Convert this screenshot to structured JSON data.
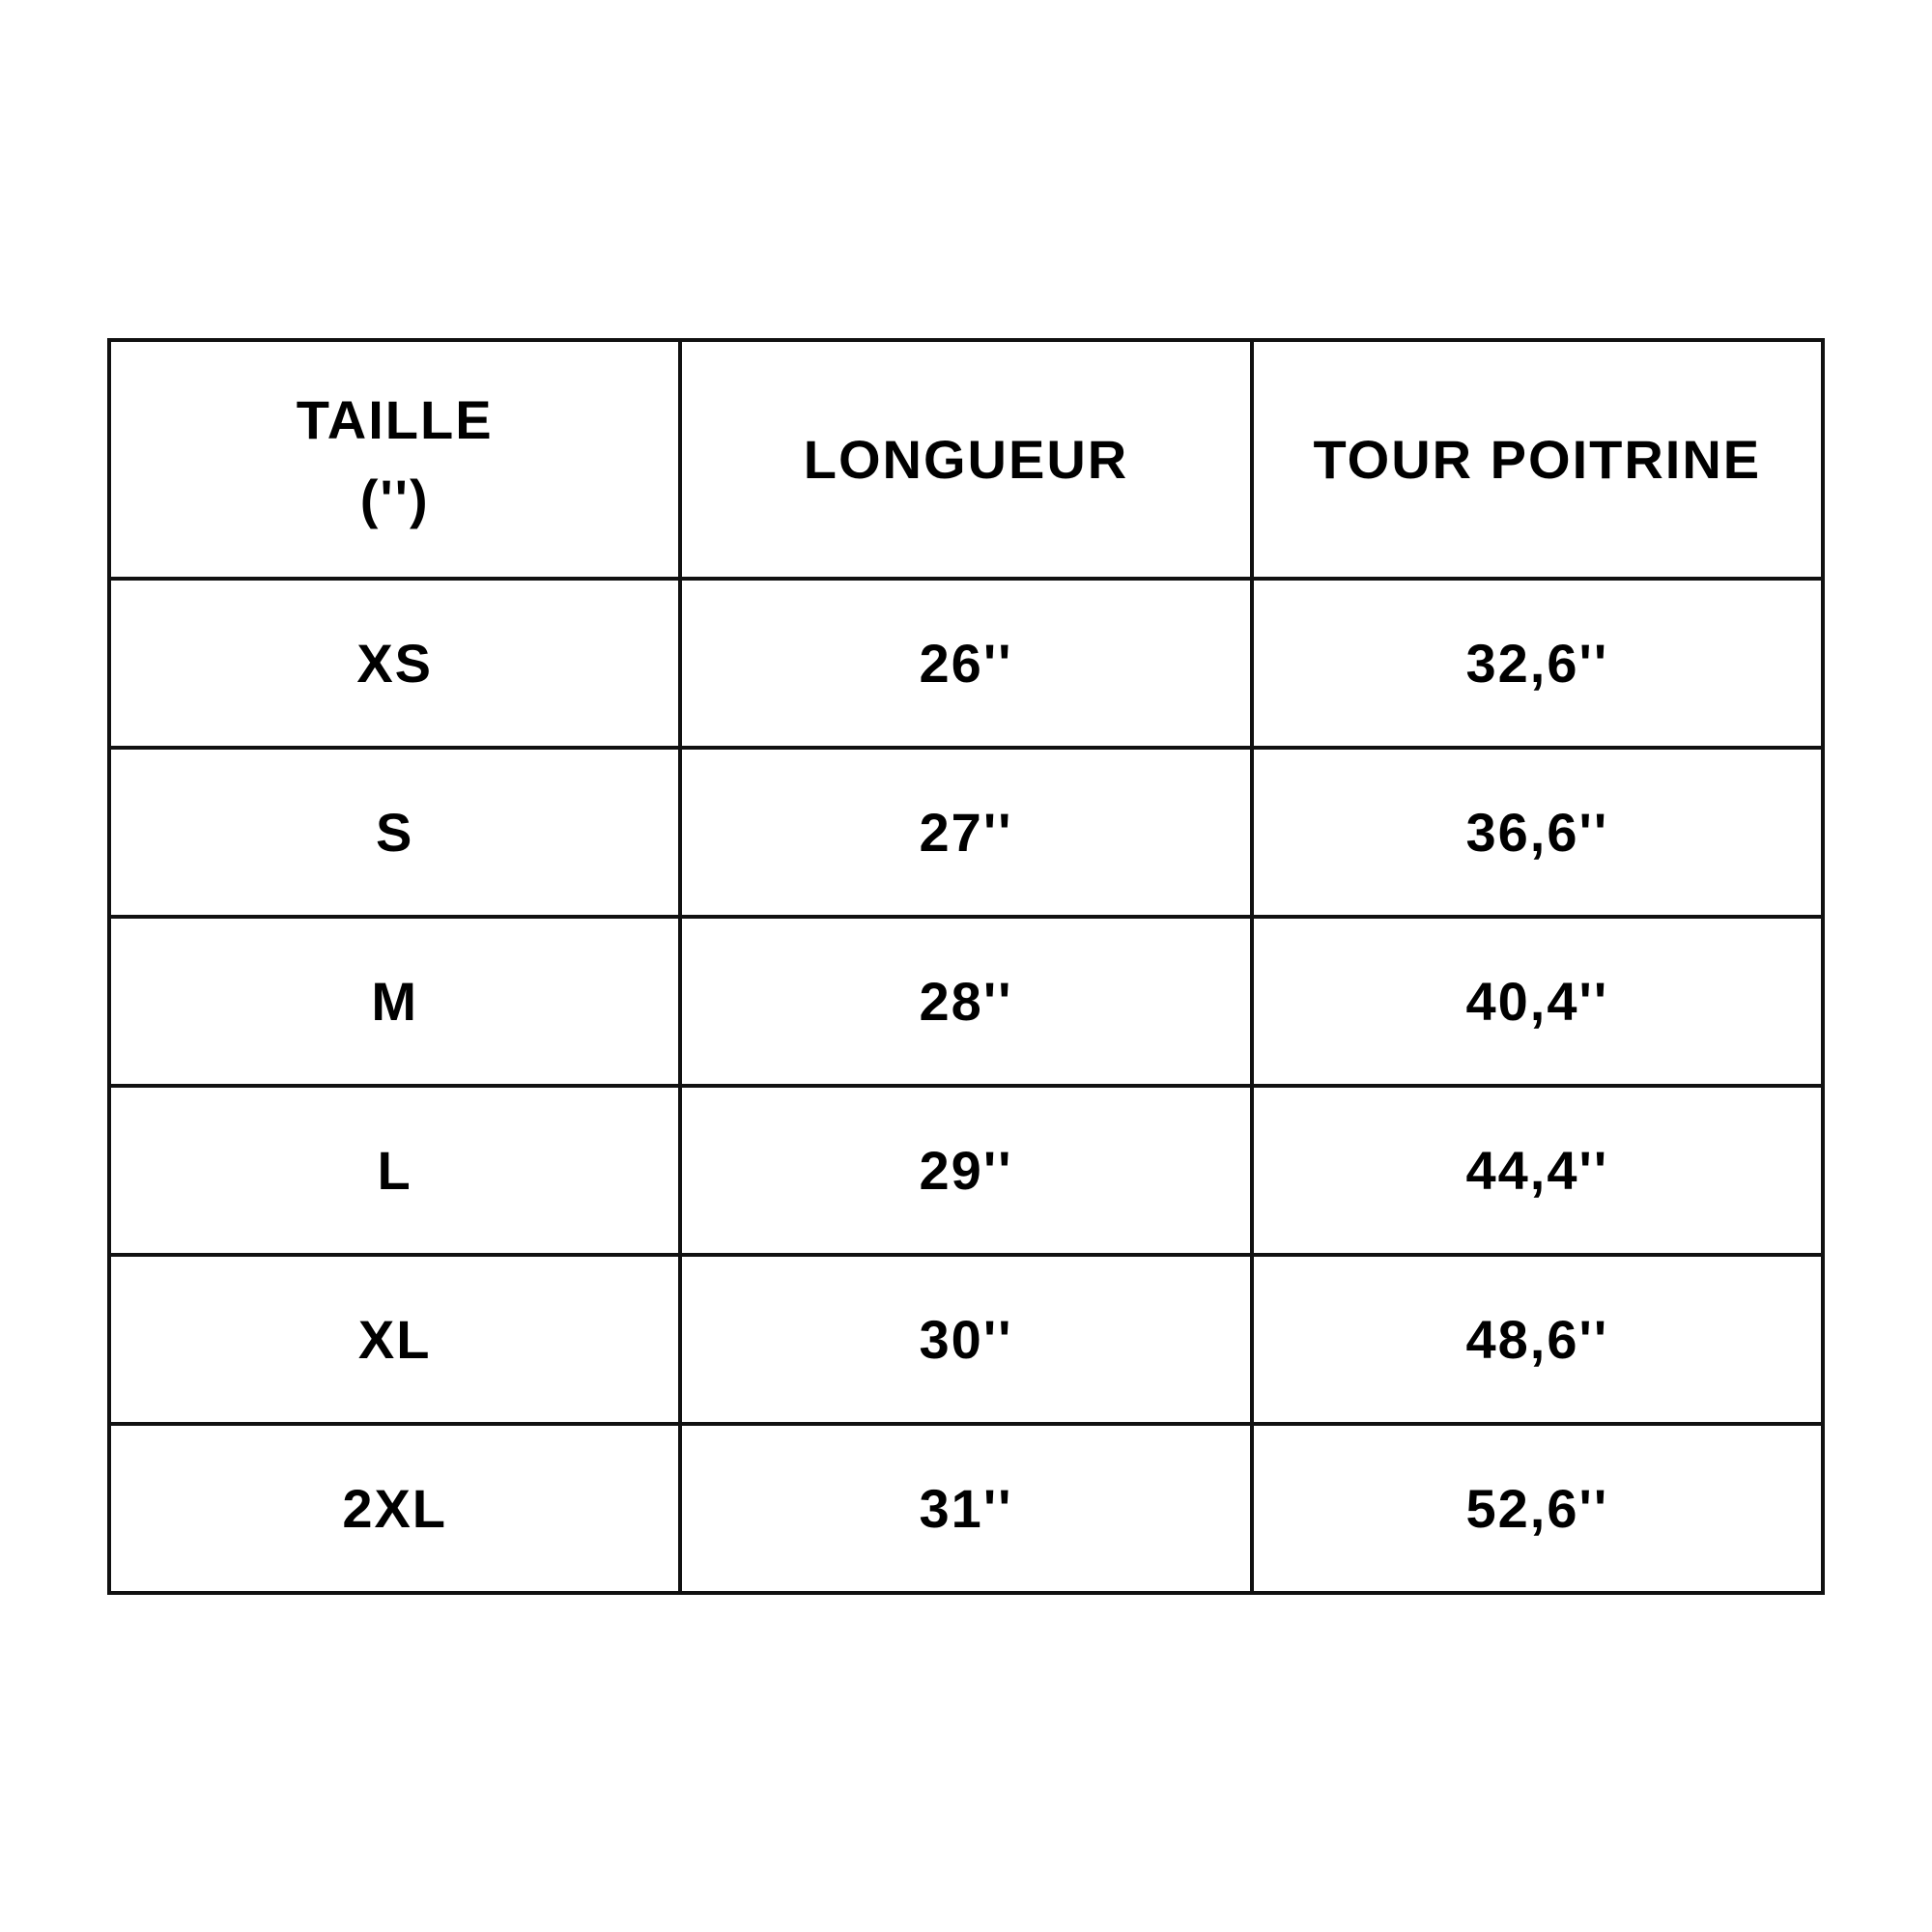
{
  "table": {
    "headers": [
      "TAILLE",
      "('')",
      "LONGUEUR",
      "TOUR POITRINE"
    ],
    "header_cells": [
      {
        "line1": "TAILLE",
        "line2": "('')"
      },
      {
        "line1": "LONGUEUR"
      },
      {
        "line1": "TOUR POITRINE"
      }
    ],
    "rows": [
      [
        "XS",
        "26''",
        "32,6''"
      ],
      [
        "S",
        "27''",
        "36,6''"
      ],
      [
        "M",
        "28''",
        "40,4''"
      ],
      [
        "L",
        "29''",
        "44,4''"
      ],
      [
        "XL",
        "30''",
        "48,6''"
      ],
      [
        "2XL",
        "31''",
        "52,6''"
      ]
    ]
  }
}
